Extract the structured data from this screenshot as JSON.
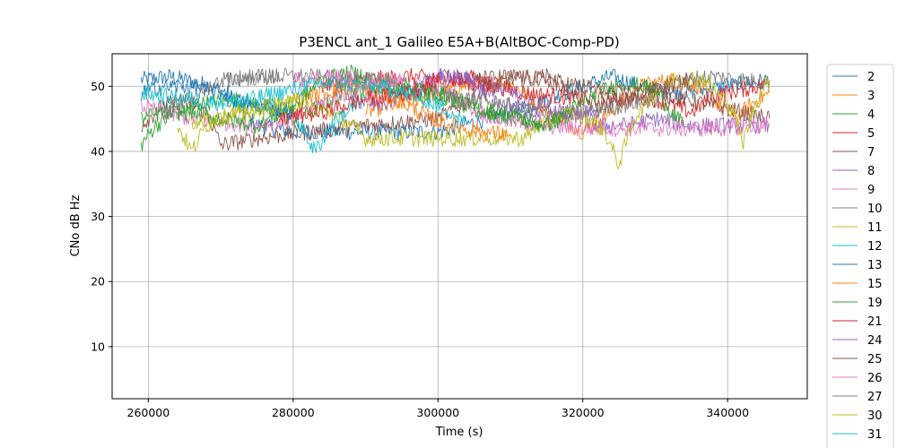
{
  "chart_data": {
    "type": "line",
    "title": "P3ENCL ant_1 Galileo E5A+B(AltBOC-Comp-PD)",
    "xlabel": "Time (s)",
    "ylabel": "CNo dB Hz",
    "xlim": [
      255000,
      351000
    ],
    "ylim": [
      2,
      55
    ],
    "xticks": [
      260000,
      280000,
      300000,
      320000,
      340000
    ],
    "xtick_labels": [
      "260000",
      "280000",
      "300000",
      "320000",
      "340000"
    ],
    "yticks": [
      10,
      20,
      30,
      40,
      50
    ],
    "ytick_labels": [
      "10",
      "20",
      "30",
      "40",
      "50"
    ],
    "grid": true,
    "legend_position": "right (outside plot), cut off at bottom",
    "series": [
      {
        "name": "2",
        "color": "#1f77b4",
        "points": [
          [
            259000,
            51
          ],
          [
            263000,
            51.5
          ],
          [
            267000,
            50.5
          ],
          [
            271000,
            49
          ],
          [
            273000,
            46
          ],
          [
            275000,
            44
          ],
          [
            280000,
            43
          ],
          [
            290000,
            43
          ],
          [
            300000,
            43
          ],
          [
            310000,
            46
          ],
          [
            315000,
            48
          ],
          [
            320000,
            50
          ],
          [
            324000,
            51.5
          ],
          [
            328000,
            50
          ],
          [
            334000,
            49
          ],
          [
            340000,
            50
          ],
          [
            345800,
            51
          ]
        ]
      },
      {
        "name": "3",
        "color": "#ff7f0e",
        "points": [
          [
            290000,
            46
          ],
          [
            295000,
            47.5
          ],
          [
            300000,
            49
          ],
          [
            305000,
            50.5
          ],
          [
            310000,
            50.5
          ],
          [
            314000,
            47
          ],
          [
            317000,
            45
          ],
          [
            320000,
            43
          ],
          [
            324000,
            46
          ],
          [
            328000,
            50
          ],
          [
            332000,
            51
          ],
          [
            336000,
            50
          ],
          [
            339000,
            47
          ],
          [
            341000,
            45
          ],
          [
            343000,
            47
          ],
          [
            345800,
            49
          ]
        ]
      },
      {
        "name": "4",
        "color": "#2ca02c",
        "points": [
          [
            259000,
            41
          ],
          [
            261000,
            44
          ],
          [
            264000,
            46
          ],
          [
            268000,
            47.5
          ],
          [
            272000,
            48
          ],
          [
            276000,
            47
          ],
          [
            280000,
            45
          ],
          [
            284000,
            47
          ],
          [
            287000,
            49
          ],
          [
            292000,
            50
          ],
          [
            297000,
            49
          ],
          [
            303000,
            48
          ],
          [
            306000,
            46
          ],
          [
            310000,
            45
          ],
          [
            314000,
            44
          ],
          [
            318000,
            45
          ]
        ]
      },
      {
        "name": "5",
        "color": "#d62728",
        "points": [
          [
            284000,
            50
          ],
          [
            290000,
            51
          ],
          [
            296000,
            51.5
          ],
          [
            302000,
            51
          ],
          [
            308000,
            50
          ],
          [
            312000,
            49
          ],
          [
            320000,
            48
          ],
          [
            330000,
            48
          ],
          [
            335000,
            46
          ],
          [
            338000,
            48.5
          ],
          [
            342000,
            49.5
          ],
          [
            345800,
            50.5
          ]
        ]
      },
      {
        "name": "7",
        "color": "#8c564b",
        "points": [
          [
            259000,
            44
          ],
          [
            262000,
            47
          ],
          [
            265000,
            48
          ],
          [
            268000,
            46
          ],
          [
            270000,
            41
          ],
          [
            275000,
            42
          ],
          [
            282000,
            43
          ],
          [
            290000,
            44
          ],
          [
            300000,
            45
          ],
          [
            306000,
            49
          ],
          [
            310000,
            51
          ],
          [
            315000,
            51.5
          ],
          [
            318000,
            49
          ],
          [
            322000,
            47
          ],
          [
            326000,
            48
          ],
          [
            330000,
            49
          ],
          [
            334000,
            48
          ],
          [
            338000,
            47
          ],
          [
            342000,
            46
          ],
          [
            345800,
            45
          ]
        ]
      },
      {
        "name": "8",
        "color": "#9467bd",
        "points": [
          [
            288000,
            48
          ],
          [
            292000,
            47
          ],
          [
            296000,
            49
          ],
          [
            300000,
            51.5
          ],
          [
            304000,
            51
          ],
          [
            308000,
            48
          ],
          [
            312000,
            46
          ],
          [
            315000,
            45
          ],
          [
            318000,
            46
          ],
          [
            322000,
            44
          ],
          [
            326000,
            44
          ],
          [
            330000,
            45
          ],
          [
            335000,
            44
          ],
          [
            340000,
            44
          ],
          [
            345800,
            44
          ]
        ]
      },
      {
        "name": "9",
        "color": "#e377c2",
        "points": [
          [
            259000,
            47
          ],
          [
            262000,
            46
          ],
          [
            266000,
            45
          ],
          [
            270000,
            44.5
          ],
          [
            275000,
            44
          ],
          [
            280000,
            45
          ],
          [
            285000,
            48
          ],
          [
            290000,
            50
          ],
          [
            295000,
            50.5
          ],
          [
            300000,
            50
          ],
          [
            304000,
            47
          ],
          [
            308000,
            45
          ],
          [
            314000,
            44
          ],
          [
            320000,
            43.5
          ],
          [
            330000,
            43.5
          ],
          [
            340000,
            43.5
          ],
          [
            343000,
            44
          ],
          [
            345800,
            44
          ]
        ]
      },
      {
        "name": "10",
        "color": "#7f7f7f",
        "points": [
          [
            271000,
            51
          ],
          [
            276000,
            51.5
          ],
          [
            282000,
            51.5
          ],
          [
            288000,
            51
          ],
          [
            292000,
            50
          ],
          [
            296000,
            49
          ],
          [
            300000,
            49
          ],
          [
            305000,
            48
          ],
          [
            310000,
            47
          ],
          [
            315000,
            46
          ],
          [
            320000,
            46
          ],
          [
            325000,
            47
          ],
          [
            330000,
            48
          ],
          [
            334000,
            51
          ],
          [
            338000,
            51.5
          ],
          [
            342000,
            51
          ],
          [
            345800,
            50.5
          ]
        ]
      },
      {
        "name": "11",
        "color": "#bcbd22",
        "points": [
          [
            264000,
            44
          ],
          [
            266000,
            40
          ],
          [
            268000,
            44
          ],
          [
            272000,
            46
          ],
          [
            276000,
            47
          ],
          [
            280000,
            47.5
          ],
          [
            285000,
            46
          ],
          [
            288000,
            44
          ],
          [
            290000,
            42
          ],
          [
            300000,
            42
          ],
          [
            312000,
            42
          ],
          [
            314000,
            44
          ],
          [
            318000,
            46
          ],
          [
            321000,
            45
          ],
          [
            323000,
            43
          ],
          [
            325000,
            38
          ],
          [
            327000,
            45
          ],
          [
            330000,
            49
          ],
          [
            333000,
            51.5
          ],
          [
            337000,
            51
          ],
          [
            341000,
            46
          ],
          [
            342000,
            41
          ],
          [
            344000,
            48
          ],
          [
            345800,
            51
          ]
        ]
      },
      {
        "name": "12",
        "color": "#17becf",
        "points": [
          [
            272000,
            48
          ],
          [
            276000,
            47
          ],
          [
            280000,
            46
          ],
          [
            283000,
            40
          ],
          [
            286000,
            45
          ],
          [
            290000,
            48
          ]
        ]
      },
      {
        "name": "13",
        "color": "#1f77b4",
        "points": [
          [
            259000,
            49
          ],
          [
            262000,
            50
          ],
          [
            266000,
            50
          ],
          [
            270000,
            49
          ],
          [
            274000,
            47
          ],
          [
            278000,
            46.5
          ],
          [
            280000,
            46
          ]
        ]
      },
      {
        "name": "15",
        "color": "#ff7f0e",
        "points": [
          [
            280000,
            48
          ],
          [
            284000,
            49
          ],
          [
            288000,
            50
          ],
          [
            292000,
            49
          ],
          [
            296000,
            47
          ],
          [
            299000,
            45
          ],
          [
            302000,
            44
          ],
          [
            306000,
            43
          ],
          [
            310000,
            42.5
          ]
        ]
      },
      {
        "name": "19",
        "color": "#2ca02c",
        "points": [
          [
            259000,
            45
          ],
          [
            262000,
            46
          ],
          [
            266000,
            46
          ],
          [
            270000,
            45
          ],
          [
            275000,
            44
          ],
          [
            280000,
            47
          ],
          [
            284000,
            51
          ],
          [
            288000,
            52
          ],
          [
            292000,
            51
          ],
          [
            296000,
            50
          ],
          [
            300000,
            49
          ],
          [
            304000,
            47
          ],
          [
            308000,
            46
          ],
          [
            312000,
            45
          ],
          [
            315000,
            44
          ],
          [
            318000,
            46
          ],
          [
            322000,
            49
          ],
          [
            326000,
            50.5
          ],
          [
            330000,
            49.5
          ],
          [
            333000,
            45
          ],
          [
            334000,
            44
          ]
        ]
      },
      {
        "name": "21",
        "color": "#d62728",
        "points": [
          [
            278000,
            45
          ],
          [
            284000,
            46
          ],
          [
            290000,
            48
          ],
          [
            296000,
            49
          ],
          [
            300000,
            51
          ],
          [
            304000,
            51.5
          ],
          [
            308000,
            50
          ]
        ]
      },
      {
        "name": "24",
        "color": "#9467bd",
        "points": [
          [
            300000,
            52
          ],
          [
            305000,
            51
          ],
          [
            310000,
            49
          ],
          [
            314000,
            47
          ],
          [
            318000,
            46
          ],
          [
            322000,
            46
          ]
        ]
      },
      {
        "name": "25",
        "color": "#8c564b",
        "points": [
          [
            305000,
            51
          ],
          [
            310000,
            51.5
          ],
          [
            315000,
            51
          ],
          [
            320000,
            50
          ],
          [
            325000,
            49
          ],
          [
            330000,
            49.5
          ],
          [
            335000,
            51
          ]
        ]
      },
      {
        "name": "26",
        "color": "#e377c2",
        "points": [
          [
            280000,
            51
          ],
          [
            285000,
            51.5
          ],
          [
            290000,
            51
          ],
          [
            295000,
            51
          ]
        ]
      },
      {
        "name": "27",
        "color": "#7f7f7f",
        "points": [
          [
            262000,
            46
          ],
          [
            266000,
            48
          ],
          [
            270000,
            51
          ],
          [
            274000,
            51.5
          ],
          [
            278000,
            51.5
          ]
        ]
      },
      {
        "name": "30",
        "color": "#bcbd22",
        "points": [
          [
            266000,
            44
          ],
          [
            270000,
            45
          ],
          [
            274000,
            46
          ],
          [
            278000,
            47
          ],
          [
            282000,
            48
          ]
        ]
      },
      {
        "name": "31",
        "color": "#17becf",
        "points": [
          [
            259000,
            49
          ],
          [
            262000,
            48.5
          ],
          [
            266000,
            48
          ],
          [
            270000,
            47.5
          ],
          [
            274000,
            48
          ],
          [
            278000,
            49
          ],
          [
            282000,
            50
          ],
          [
            286000,
            50.5
          ],
          [
            290000,
            50
          ],
          [
            294000,
            49.5
          ],
          [
            298000,
            48
          ],
          [
            302000,
            46
          ],
          [
            304000,
            44
          ]
        ]
      }
    ]
  }
}
